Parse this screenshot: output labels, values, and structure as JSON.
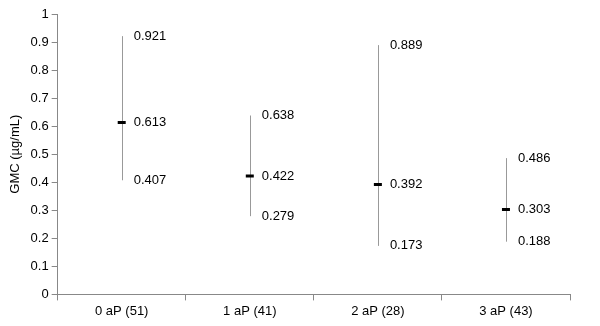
{
  "chart_data": {
    "type": "errorbar",
    "categories": [
      "0 aP (51)",
      "1 aP (41)",
      "2 aP (28)",
      "3 aP (43)"
    ],
    "values": [
      0.613,
      0.422,
      0.392,
      0.303
    ],
    "lower": [
      0.407,
      0.279,
      0.173,
      0.188
    ],
    "upper": [
      0.921,
      0.638,
      0.889,
      0.486
    ],
    "y_label": "GMC (µg/mL)",
    "ylim": [
      0,
      1
    ],
    "yticks": [
      0,
      0.1,
      0.2,
      0.3,
      0.4,
      0.5,
      0.6,
      0.7,
      0.8,
      0.9,
      1
    ],
    "grid": false,
    "data_labels": true,
    "color": "#000000"
  }
}
